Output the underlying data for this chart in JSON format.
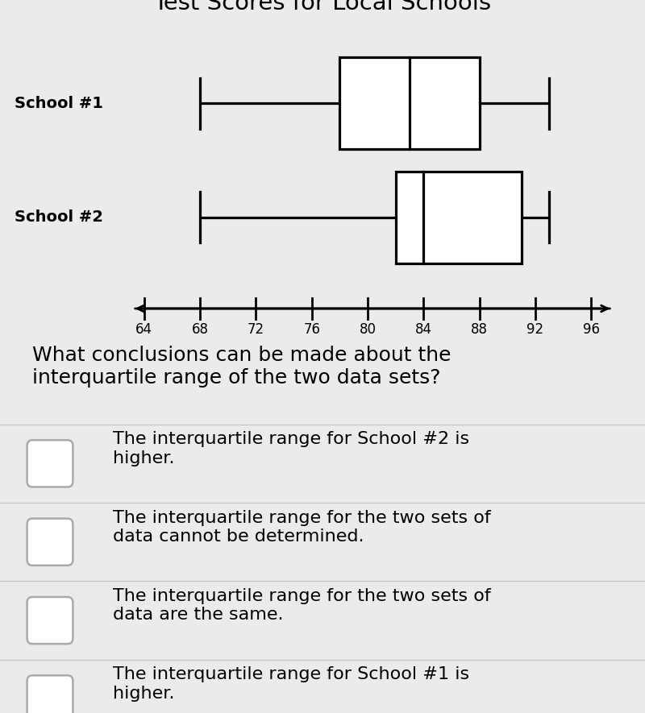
{
  "title": "Test Scores for Local Schools",
  "title_fontsize": 21,
  "background_color": "#ebebeb",
  "school1": {
    "label": "School #1",
    "whisker_min": 68,
    "q1": 78,
    "median": 83,
    "q3": 88,
    "whisker_max": 93
  },
  "school2": {
    "label": "School #2",
    "whisker_min": 68,
    "q1": 82,
    "median": 84,
    "q3": 91,
    "whisker_max": 93
  },
  "x_min": 62,
  "x_max": 98,
  "x_ticks": [
    64,
    68,
    72,
    76,
    80,
    84,
    88,
    92,
    96
  ],
  "question_text": "What conclusions can be made about the\ninterquartile range of the two data sets?",
  "options": [
    "The interquartile range for School #2 is\nhigher.",
    "The interquartile range for the two sets of\ndata cannot be determined.",
    "The interquartile range for the two sets of\ndata are the same.",
    "The interquartile range for School #1 is\nhigher."
  ]
}
